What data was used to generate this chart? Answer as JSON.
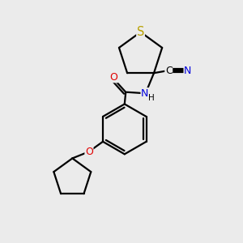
{
  "bg_color": "#ebebeb",
  "bond_color": "#000000",
  "S_color": "#b8a000",
  "O_color": "#e00000",
  "N_color": "#0000dd",
  "line_width": 1.6,
  "font_size": 9.5,
  "canvas_xlim": [
    0,
    10
  ],
  "canvas_ylim": [
    0,
    10
  ]
}
